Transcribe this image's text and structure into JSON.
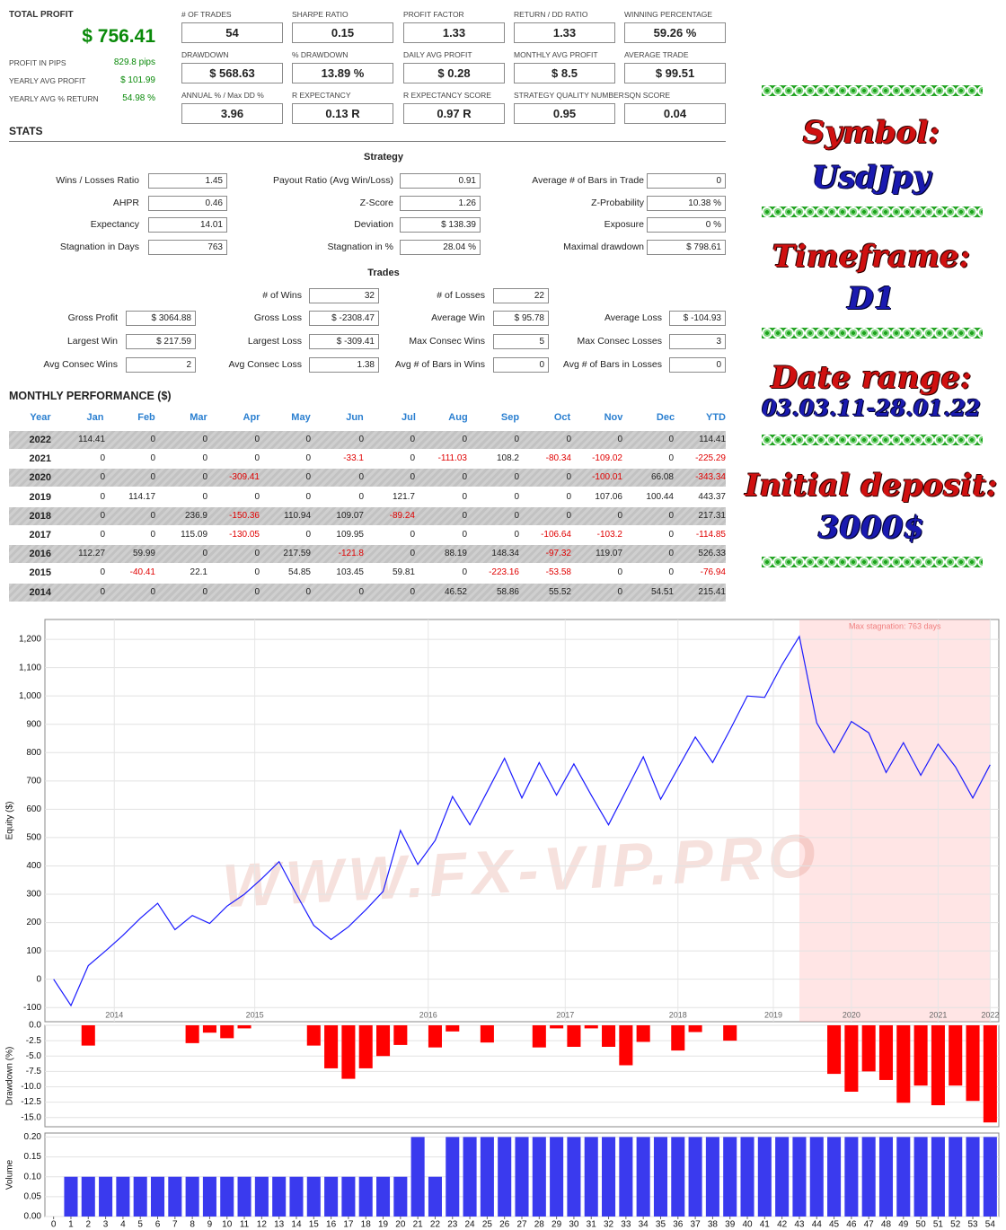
{
  "summary": {
    "title": "TOTAL PROFIT",
    "value": "$ 756.41",
    "rows": [
      [
        "PROFIT IN PIPS",
        "829.8 pips"
      ],
      [
        "YEARLY AVG PROFIT",
        "$ 101.99"
      ],
      [
        "YEARLY AVG % RETURN",
        "54.98 %"
      ]
    ]
  },
  "metrics": [
    [
      {
        "label": "# OF TRADES",
        "value": "54"
      },
      {
        "label": "SHARPE RATIO",
        "value": "0.15"
      },
      {
        "label": "PROFIT FACTOR",
        "value": "1.33"
      },
      {
        "label": "RETURN / DD RATIO",
        "value": "1.33"
      },
      {
        "label": "WINNING PERCENTAGE",
        "value": "59.26 %"
      }
    ],
    [
      {
        "label": "DRAWDOWN",
        "value": "$ 568.63"
      },
      {
        "label": "% DRAWDOWN",
        "value": "13.89 %"
      },
      {
        "label": "DAILY AVG PROFIT",
        "value": "$ 0.28"
      },
      {
        "label": "MONTHLY AVG PROFIT",
        "value": "$ 8.5"
      },
      {
        "label": "AVERAGE TRADE",
        "value": "$ 99.51"
      }
    ],
    [
      {
        "label": "ANNUAL % / Max DD %",
        "value": "3.96"
      },
      {
        "label": "R EXPECTANCY",
        "value": "0.13 R"
      },
      {
        "label": "R EXPECTANCY SCORE",
        "value": "0.97 R"
      },
      {
        "label": "STRATEGY QUALITY NUMBER",
        "value": "0.95"
      },
      {
        "label": "SQN SCORE",
        "value": "0.04"
      }
    ]
  ],
  "stats": {
    "title": "STATS",
    "strategy": {
      "heading": "Strategy",
      "rows": [
        [
          [
            "Wins / Losses Ratio",
            "1.45"
          ],
          [
            "Payout Ratio (Avg Win/Loss)",
            "0.91"
          ],
          [
            "Average # of Bars in Trade",
            "0"
          ]
        ],
        [
          [
            "AHPR",
            "0.46"
          ],
          [
            "Z-Score",
            "1.26"
          ],
          [
            "Z-Probability",
            "10.38 %"
          ]
        ],
        [
          [
            "Expectancy",
            "14.01"
          ],
          [
            "Deviation",
            "$ 138.39"
          ],
          [
            "Exposure",
            "0 %"
          ]
        ],
        [
          [
            "Stagnation in Days",
            "763"
          ],
          [
            "Stagnation in %",
            "28.04 %"
          ],
          [
            "Maximal drawdown",
            "$ 798.61"
          ]
        ]
      ]
    },
    "trades": {
      "heading": "Trades",
      "first_row": [
        [
          "# of Wins",
          "32"
        ],
        [
          "# of Losses",
          "22"
        ]
      ],
      "rows": [
        [
          [
            "Gross Profit",
            "$ 3064.88"
          ],
          [
            "Gross Loss",
            "$ -2308.47"
          ],
          [
            "Average Win",
            "$ 95.78"
          ],
          [
            "Average Loss",
            "$ -104.93"
          ]
        ],
        [
          [
            "Largest Win",
            "$ 217.59"
          ],
          [
            "Largest Loss",
            "$ -309.41"
          ],
          [
            "Max Consec Wins",
            "5"
          ],
          [
            "Max Consec Losses",
            "3"
          ]
        ],
        [
          [
            "Avg Consec Wins",
            "2"
          ],
          [
            "Avg Consec Loss",
            "1.38"
          ],
          [
            "Avg # of Bars in Wins",
            "0"
          ],
          [
            "Avg # of Bars in Losses",
            "0"
          ]
        ]
      ]
    }
  },
  "monthly": {
    "title": "MONTHLY PERFORMANCE ($)",
    "headers": [
      "Year",
      "Jan",
      "Feb",
      "Mar",
      "Apr",
      "May",
      "Jun",
      "Jul",
      "Aug",
      "Sep",
      "Oct",
      "Nov",
      "Dec",
      "YTD"
    ],
    "rows": [
      [
        "2022",
        "114.41",
        "0",
        "0",
        "0",
        "0",
        "0",
        "0",
        "0",
        "0",
        "0",
        "0",
        "0",
        "114.41"
      ],
      [
        "2021",
        "0",
        "0",
        "0",
        "0",
        "0",
        "-33.1",
        "0",
        "-111.03",
        "108.2",
        "-80.34",
        "-109.02",
        "0",
        "-225.29"
      ],
      [
        "2020",
        "0",
        "0",
        "0",
        "-309.41",
        "0",
        "0",
        "0",
        "0",
        "0",
        "0",
        "-100.01",
        "66.08",
        "-343.34"
      ],
      [
        "2019",
        "0",
        "114.17",
        "0",
        "0",
        "0",
        "0",
        "121.7",
        "0",
        "0",
        "0",
        "107.06",
        "100.44",
        "443.37"
      ],
      [
        "2018",
        "0",
        "0",
        "236.9",
        "-150.36",
        "110.94",
        "109.07",
        "-89.24",
        "0",
        "0",
        "0",
        "0",
        "0",
        "217.31"
      ],
      [
        "2017",
        "0",
        "0",
        "115.09",
        "-130.05",
        "0",
        "109.95",
        "0",
        "0",
        "0",
        "-106.64",
        "-103.2",
        "0",
        "-114.85"
      ],
      [
        "2016",
        "112.27",
        "59.99",
        "0",
        "0",
        "217.59",
        "-121.8",
        "0",
        "88.19",
        "148.34",
        "-97.32",
        "119.07",
        "0",
        "526.33"
      ],
      [
        "2015",
        "0",
        "-40.41",
        "22.1",
        "0",
        "54.85",
        "103.45",
        "59.81",
        "0",
        "-223.16",
        "-53.58",
        "0",
        "0",
        "-76.94"
      ],
      [
        "2014",
        "0",
        "0",
        "0",
        "0",
        "0",
        "0",
        "0",
        "46.52",
        "58.86",
        "55.52",
        "0",
        "54.51",
        "215.41"
      ]
    ]
  },
  "side": [
    [
      "Symbol:",
      "UsdJpy"
    ],
    [
      "Timeframe:",
      "D1"
    ],
    [
      "Date range:",
      "03.03.11-28.01.22"
    ],
    [
      "Initial deposit:",
      "3000$"
    ]
  ],
  "watermark": "WWW.FX-VIP.PRO",
  "chart_data": [
    {
      "type": "line",
      "y_label": "Equity ($)",
      "annotation": "Max stagnation: 763 days",
      "stagnation_xlim": [
        43,
        54
      ],
      "color": "#1a1aff",
      "grid": true,
      "x": [
        0,
        1,
        2,
        3,
        4,
        5,
        6,
        7,
        8,
        9,
        10,
        11,
        12,
        13,
        14,
        15,
        16,
        17,
        18,
        19,
        20,
        21,
        22,
        23,
        24,
        25,
        26,
        27,
        28,
        29,
        30,
        31,
        32,
        33,
        34,
        35,
        36,
        37,
        38,
        39,
        40,
        41,
        42,
        43,
        44,
        45,
        46,
        47,
        48,
        49,
        50,
        51,
        52,
        53,
        54
      ],
      "values": [
        0,
        -93,
        48,
        100,
        155,
        215,
        268,
        175,
        225,
        197,
        258,
        300,
        355,
        415,
        300,
        190,
        140,
        185,
        245,
        310,
        525,
        405,
        490,
        645,
        545,
        662,
        780,
        640,
        765,
        650,
        760,
        650,
        545,
        665,
        785,
        635,
        745,
        855,
        765,
        880,
        1000,
        995,
        1110,
        1210,
        905,
        800,
        910,
        870,
        730,
        835,
        720,
        830,
        750,
        640,
        757
      ],
      "xlim": [
        -0.5,
        54.5
      ],
      "ylim": [
        -150,
        1270
      ],
      "xticks": [
        {
          "value": 3.5,
          "label": "2014"
        },
        {
          "value": 11.6,
          "label": "2015"
        },
        {
          "value": 21.6,
          "label": "2016"
        },
        {
          "value": 29.5,
          "label": "2017"
        },
        {
          "value": 36,
          "label": "2018"
        },
        {
          "value": 41.5,
          "label": "2019"
        },
        {
          "value": 46,
          "label": "2020"
        },
        {
          "value": 51,
          "label": "2021"
        },
        {
          "value": 54,
          "label": "2022"
        }
      ],
      "yticks": [
        -100,
        0,
        100,
        200,
        300,
        400,
        500,
        600,
        700,
        800,
        900,
        {
          "value": 1000,
          "label": "1,000"
        },
        {
          "value": 1100,
          "label": "1,100"
        },
        {
          "value": 1200,
          "label": "1,200"
        }
      ]
    },
    {
      "type": "bar",
      "y_label": "Drawdown (%)",
      "color": "#ff0000",
      "grid": true,
      "x": [
        0,
        1,
        2,
        3,
        4,
        5,
        6,
        7,
        8,
        9,
        10,
        11,
        12,
        13,
        14,
        15,
        16,
        17,
        18,
        19,
        20,
        21,
        22,
        23,
        24,
        25,
        26,
        27,
        28,
        29,
        30,
        31,
        32,
        33,
        34,
        35,
        36,
        37,
        38,
        39,
        40,
        41,
        42,
        43,
        44,
        45,
        46,
        47,
        48,
        49,
        50,
        51,
        52,
        53,
        54
      ],
      "values": [
        0,
        0,
        -3.3,
        0,
        0,
        0,
        0,
        0,
        -2.9,
        -1.2,
        -2.1,
        -0.5,
        0,
        0,
        0,
        -3.3,
        -7.0,
        -8.7,
        -7.0,
        -5.0,
        -3.2,
        0,
        -3.6,
        -1.0,
        0,
        -2.8,
        0,
        0,
        -3.6,
        -0.5,
        -3.5,
        -0.5,
        -3.5,
        -6.5,
        -2.7,
        0,
        -4.1,
        -1.1,
        0,
        -2.5,
        0,
        0,
        0,
        0,
        0,
        -7.9,
        -10.8,
        -7.5,
        -8.9,
        -12.6,
        -9.8,
        -13.0,
        -9.8,
        -12.3,
        -15.8
      ],
      "xlim": [
        -0.5,
        54.5
      ],
      "ylim": [
        -16.5,
        0
      ],
      "yticks": [
        {
          "value": 0,
          "label": "0.0"
        },
        -2.5,
        {
          "value": -5,
          "label": "-5.0"
        },
        -7.5,
        {
          "value": -10,
          "label": "-10.0"
        },
        -12.5,
        {
          "value": -15,
          "label": "-15.0"
        }
      ]
    },
    {
      "type": "bar",
      "y_label": "Volume",
      "color": "#3a3aee",
      "grid": true,
      "x": [
        0,
        1,
        2,
        3,
        4,
        5,
        6,
        7,
        8,
        9,
        10,
        11,
        12,
        13,
        14,
        15,
        16,
        17,
        18,
        19,
        20,
        21,
        22,
        23,
        24,
        25,
        26,
        27,
        28,
        29,
        30,
        31,
        32,
        33,
        34,
        35,
        36,
        37,
        38,
        39,
        40,
        41,
        42,
        43,
        44,
        45,
        46,
        47,
        48,
        49,
        50,
        51,
        52,
        53,
        54
      ],
      "values": [
        0,
        0.1,
        0.1,
        0.1,
        0.1,
        0.1,
        0.1,
        0.1,
        0.1,
        0.1,
        0.1,
        0.1,
        0.1,
        0.1,
        0.1,
        0.1,
        0.1,
        0.1,
        0.1,
        0.1,
        0.1,
        0.2,
        0.1,
        0.2,
        0.2,
        0.2,
        0.2,
        0.2,
        0.2,
        0.2,
        0.2,
        0.2,
        0.2,
        0.2,
        0.2,
        0.2,
        0.2,
        0.2,
        0.2,
        0.2,
        0.2,
        0.2,
        0.2,
        0.2,
        0.2,
        0.2,
        0.2,
        0.2,
        0.2,
        0.2,
        0.2,
        0.2,
        0.2,
        0.2,
        0.2
      ],
      "xlim": [
        -0.5,
        54.5
      ],
      "ylim": [
        0,
        0.21
      ],
      "xticks": [
        0,
        1,
        2,
        3,
        4,
        5,
        6,
        7,
        8,
        9,
        10,
        11,
        12,
        13,
        14,
        15,
        16,
        17,
        18,
        19,
        20,
        21,
        22,
        23,
        24,
        25,
        26,
        27,
        28,
        29,
        30,
        31,
        32,
        33,
        34,
        35,
        36,
        37,
        38,
        39,
        40,
        41,
        42,
        43,
        44,
        45,
        46,
        47,
        48,
        49,
        50,
        51,
        52,
        53,
        54
      ],
      "yticks": [
        {
          "value": 0,
          "label": "0.00"
        },
        {
          "value": 0.05,
          "label": "0.05"
        },
        {
          "value": 0.1,
          "label": "0.10"
        },
        {
          "value": 0.15,
          "label": "0.15"
        },
        {
          "value": 0.2,
          "label": "0.20"
        }
      ]
    }
  ]
}
